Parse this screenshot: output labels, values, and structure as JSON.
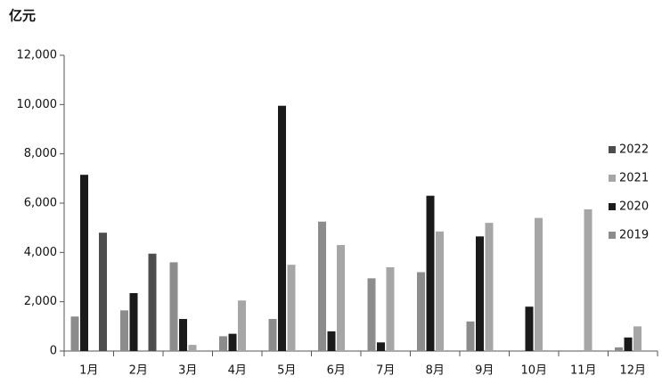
{
  "chart_data": {
    "type": "bar",
    "y_label": "亿元",
    "categories": [
      "1月",
      "2月",
      "3月",
      "4月",
      "5月",
      "6月",
      "7月",
      "8月",
      "9月",
      "10月",
      "11月",
      "12月"
    ],
    "series": [
      {
        "name": "2019",
        "color": "#8c8c8c",
        "values": [
          1400,
          1650,
          3600,
          600,
          1300,
          5250,
          2950,
          3200,
          1200,
          null,
          null,
          150
        ]
      },
      {
        "name": "2020",
        "color": "#1a1a1a",
        "values": [
          7150,
          2350,
          1300,
          700,
          9950,
          800,
          350,
          6300,
          4650,
          1800,
          null,
          550
        ]
      },
      {
        "name": "2021",
        "color": "#a6a6a6",
        "values": [
          null,
          null,
          250,
          2050,
          3500,
          4300,
          3400,
          4850,
          5200,
          5400,
          5750,
          1000
        ]
      },
      {
        "name": "2022",
        "color": "#4d4d4d",
        "values": [
          4800,
          3950,
          null,
          null,
          null,
          null,
          null,
          null,
          null,
          null,
          null,
          null
        ]
      }
    ],
    "legend_order": [
      "2022",
      "2021",
      "2020",
      "2019"
    ],
    "ylim": [
      0,
      12000
    ],
    "yticks": [
      0,
      {
        "value": 2000,
        "label": "2,000"
      },
      {
        "value": 4000,
        "label": "4,000"
      },
      {
        "value": 6000,
        "label": "6,000"
      },
      {
        "value": 8000,
        "label": "8,000"
      },
      {
        "value": 10000,
        "label": "10,000"
      },
      {
        "value": 12000,
        "label": "12,000"
      }
    ],
    "grid": false,
    "legend_position": "right"
  }
}
